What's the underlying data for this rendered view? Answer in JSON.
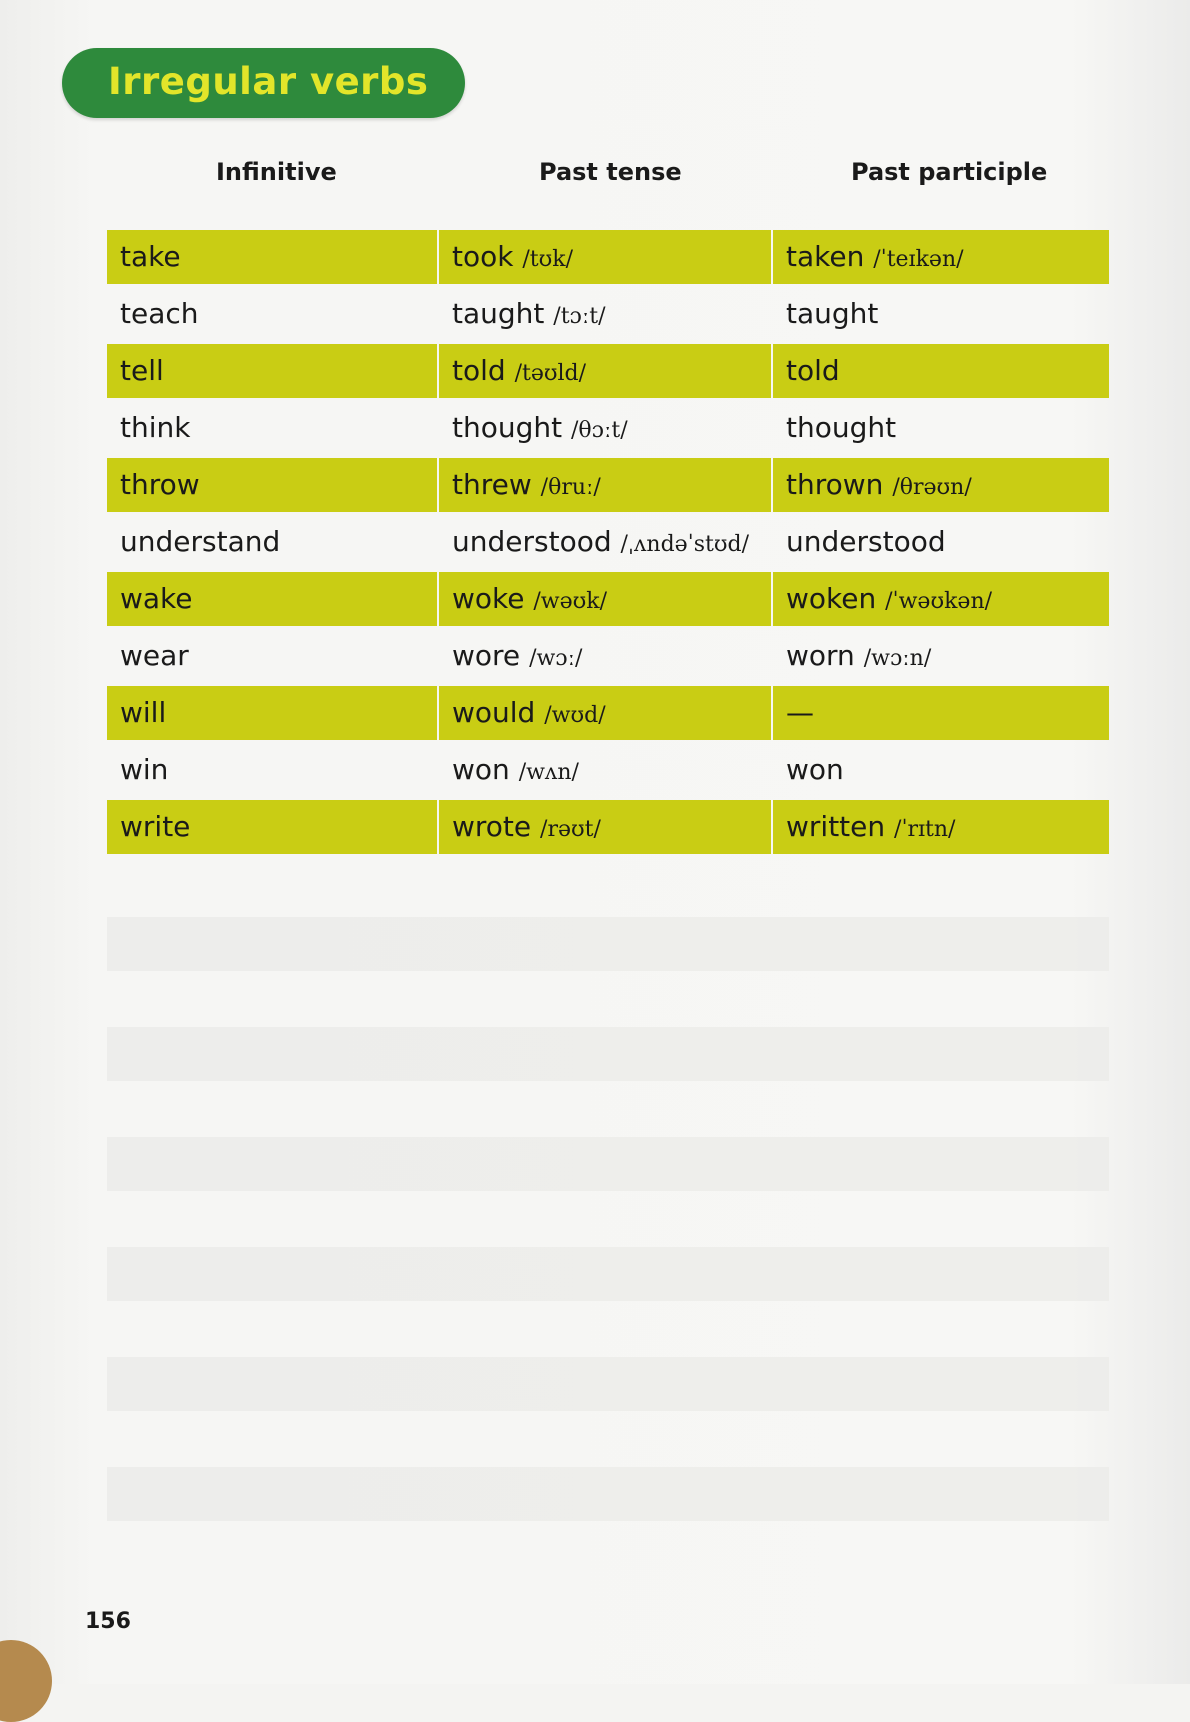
{
  "title": "Irregular verbs",
  "colors": {
    "title_bg": "#2e8a3c",
    "title_text": "#e2e52a",
    "highlight": "#c9cd14"
  },
  "headers": {
    "infinitive": "Infinitive",
    "past_tense": "Past tense",
    "past_participle": "Past participle"
  },
  "rows": [
    {
      "inf": "take",
      "past": "took",
      "past_ipa": "/tʊk/",
      "pp": "taken",
      "pp_ipa": "/ˈteɪkən/",
      "highlight": true
    },
    {
      "inf": "teach",
      "past": "taught",
      "past_ipa": "/tɔːt/",
      "pp": "taught",
      "pp_ipa": "",
      "highlight": false
    },
    {
      "inf": "tell",
      "past": "told",
      "past_ipa": "/təʊld/",
      "pp": "told",
      "pp_ipa": "",
      "highlight": true
    },
    {
      "inf": "think",
      "past": "thought",
      "past_ipa": "/θɔːt/",
      "pp": "thought",
      "pp_ipa": "",
      "highlight": false
    },
    {
      "inf": "throw",
      "past": "threw",
      "past_ipa": "/θruː/",
      "pp": "thrown",
      "pp_ipa": "/θrəʊn/",
      "highlight": true
    },
    {
      "inf": "understand",
      "past": "understood",
      "past_ipa": "/ˌʌndəˈstʊd/",
      "pp": "understood",
      "pp_ipa": "",
      "highlight": false
    },
    {
      "inf": "wake",
      "past": "woke",
      "past_ipa": "/wəʊk/",
      "pp": "woken",
      "pp_ipa": "/ˈwəʊkən/",
      "highlight": true
    },
    {
      "inf": "wear",
      "past": "wore",
      "past_ipa": "/wɔː/",
      "pp": "worn",
      "pp_ipa": "/wɔːn/",
      "highlight": false
    },
    {
      "inf": "will",
      "past": "would",
      "past_ipa": "/wʊd/",
      "pp": "—",
      "pp_ipa": "",
      "highlight": true
    },
    {
      "inf": "win",
      "past": "won",
      "past_ipa": "/wʌn/",
      "pp": "won",
      "pp_ipa": "",
      "highlight": false
    },
    {
      "inf": "write",
      "past": "wrote",
      "past_ipa": "/rəʊt/",
      "pp": "written",
      "pp_ipa": "/ˈrɪtn/",
      "highlight": true
    }
  ],
  "page_number": "156"
}
